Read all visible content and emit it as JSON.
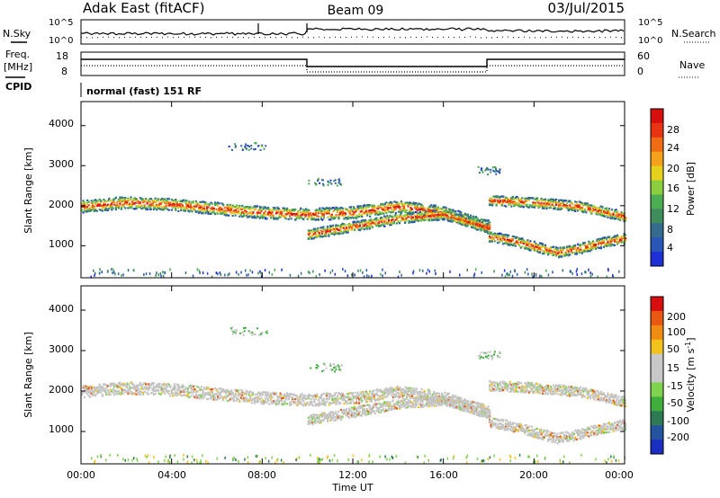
{
  "header": {
    "station": "Adak East (fitACF)",
    "beam": "Beam 09",
    "date": "03/Jul/2015"
  },
  "summary_panels": {
    "nsky_label": "N.Sky",
    "nsearch_label": "N.Search",
    "noise_ticks": [
      "10^5",
      "10^0"
    ],
    "freq_label": "Freq.",
    "freq_unit": "[MHz]",
    "freq_ticks": [
      "18",
      "8"
    ],
    "nave_label": "Nave",
    "nave_ticks": [
      "60",
      "0"
    ],
    "cpid_label": "CPID",
    "cpid_text": "normal (fast) 151 RF"
  },
  "colors": {
    "power_scale": [
      "#1f2fd6",
      "#2a56b8",
      "#356b8f",
      "#3f8c5d",
      "#4cad53",
      "#8ccf3e",
      "#e6d21d",
      "#f4a21b",
      "#ef6c14",
      "#e83412",
      "#d80f0f"
    ],
    "velocity_scale": [
      "#1a2ebf",
      "#25549e",
      "#2d7a55",
      "#3fae3c",
      "#7fd34f",
      "#c8c8c8",
      "#c8c8c8",
      "#f2c21d",
      "#ef8c14",
      "#e85812",
      "#d80f0f"
    ],
    "scatter_gray": "#c4c4c4"
  },
  "chart_data": [
    {
      "type": "heatmap",
      "title": "Power",
      "xlabel": "",
      "ylabel": "Slant Range [km]",
      "yticks": [
        "1000",
        "2000",
        "3000",
        "4000"
      ],
      "ylim": [
        200,
        4600
      ],
      "xlim": [
        0,
        24
      ],
      "colorbar_label": "Power [dB]",
      "colorbar_ticks": [
        "4",
        "8",
        "12",
        "16",
        "20",
        "24",
        "28"
      ],
      "bands": [
        {
          "name": "main",
          "x": [
            0,
            2,
            4,
            6,
            8,
            10,
            12,
            14,
            16,
            18
          ],
          "center": [
            2000,
            2100,
            2050,
            1950,
            1850,
            1800,
            1850,
            2000,
            1850,
            1500
          ],
          "width": 300
        },
        {
          "name": "lower",
          "x": [
            10,
            12,
            14,
            16,
            18
          ],
          "center": [
            1300,
            1500,
            1700,
            1800,
            1450
          ],
          "width": 250
        },
        {
          "name": "descending",
          "x": [
            18,
            19,
            20,
            21,
            22,
            23,
            24
          ],
          "center": [
            1250,
            1150,
            1000,
            850,
            950,
            1100,
            1200
          ],
          "width": 250
        },
        {
          "name": "upper_late",
          "x": [
            18,
            20,
            22,
            24
          ],
          "center": [
            2150,
            2100,
            2000,
            1750
          ],
          "width": 250
        }
      ]
    },
    {
      "type": "heatmap",
      "title": "Velocity",
      "xlabel": "Time UT",
      "ylabel": "Slant Range [km]",
      "yticks": [
        "1000",
        "2000",
        "3000",
        "4000"
      ],
      "ylim": [
        200,
        4600
      ],
      "xlim": [
        0,
        24
      ],
      "xticks": [
        "00:00",
        "04:00",
        "08:00",
        "12:00",
        "16:00",
        "20:00",
        "00:00"
      ],
      "colorbar_label": "Velocity [m s",
      "colorbar_unit_exp": "-1",
      "colorbar_ticks": [
        "200",
        "100",
        "50",
        "15",
        "-15",
        "-50",
        "-100",
        "-200"
      ]
    }
  ]
}
